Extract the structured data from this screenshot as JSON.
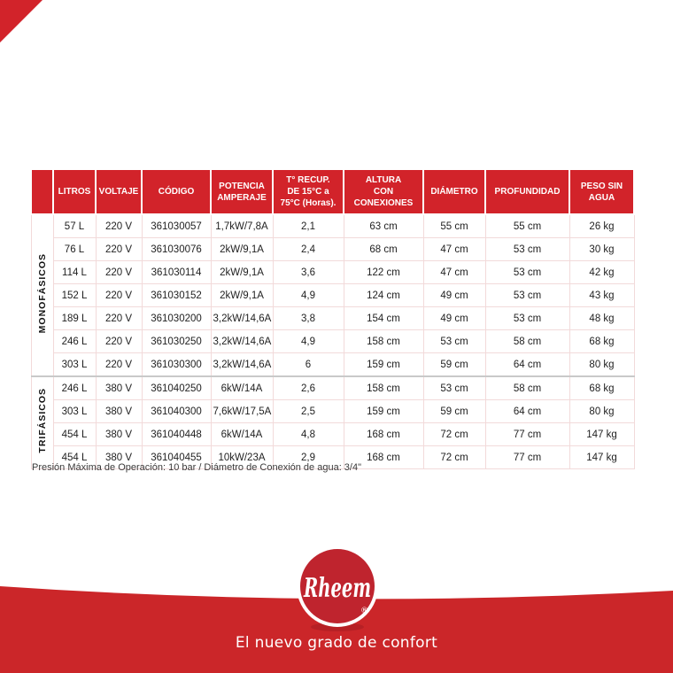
{
  "colors": {
    "header_red": "#d2232a",
    "band_red": "#cb2629",
    "logo_red": "#bf242e",
    "logo_shadow": "#9e1b22",
    "row_border": "#f2dada",
    "section_border": "#c9c9c9",
    "cell_text": "#1f1f1f",
    "note_text": "#3a3a3a"
  },
  "table": {
    "columns": [
      "LITROS",
      "VOLTAJE",
      "CÓDIGO",
      "POTENCIA\nAMPERAJE",
      "T° RECUP.\nDE 15°C a\n75°C (Horas).",
      "ALTURA\nCON\nCONEXIONES",
      "DIÁMETRO",
      "PROFUNDIDAD",
      "PESO SIN\nAGUA"
    ],
    "groups": [
      {
        "label": "MONOFÁSICOS",
        "rows": [
          [
            "57 L",
            "220 V",
            "361030057",
            "1,7kW/7,8A",
            "2,1",
            "63 cm",
            "55 cm",
            "55 cm",
            "26 kg"
          ],
          [
            "76 L",
            "220 V",
            "361030076",
            "2kW/9,1A",
            "2,4",
            "68 cm",
            "47 cm",
            "53 cm",
            "30 kg"
          ],
          [
            "114 L",
            "220 V",
            "361030114",
            "2kW/9,1A",
            "3,6",
            "122 cm",
            "47 cm",
            "53 cm",
            "42 kg"
          ],
          [
            "152 L",
            "220 V",
            "361030152",
            "2kW/9,1A",
            "4,9",
            "124 cm",
            "49 cm",
            "53 cm",
            "43 kg"
          ],
          [
            "189 L",
            "220 V",
            "361030200",
            "3,2kW/14,6A",
            "3,8",
            "154 cm",
            "49 cm",
            "53 cm",
            "48 kg"
          ],
          [
            "246 L",
            "220 V",
            "361030250",
            "3,2kW/14,6A",
            "4,9",
            "158 cm",
            "53 cm",
            "58 cm",
            "68 kg"
          ],
          [
            "303 L",
            "220 V",
            "361030300",
            "3,2kW/14,6A",
            "6",
            "159 cm",
            "59 cm",
            "64 cm",
            "80 kg"
          ]
        ]
      },
      {
        "label": "TRIFÁSICOS",
        "rows": [
          [
            "246 L",
            "380 V",
            "361040250",
            "6kW/14A",
            "2,6",
            "158 cm",
            "53 cm",
            "58 cm",
            "68 kg"
          ],
          [
            "303 L",
            "380 V",
            "361040300",
            "7,6kW/17,5A",
            "2,5",
            "159 cm",
            "59 cm",
            "64 cm",
            "80 kg"
          ],
          [
            "454 L",
            "380 V",
            "361040448",
            "6kW/14A",
            "4,8",
            "168 cm",
            "72 cm",
            "77 cm",
            "147 kg"
          ],
          [
            "454 L",
            "380 V",
            "361040455",
            "10kW/23A",
            "2,9",
            "168 cm",
            "72 cm",
            "77 cm",
            "147 kg"
          ]
        ]
      }
    ],
    "note": "Presión Máxima de Operación: 10 bar / Diámetro de Conexión de agua: 3/4\""
  },
  "footer": {
    "brand": "Rheem",
    "registered_mark": "®",
    "tagline": "El nuevo grado de confort"
  }
}
